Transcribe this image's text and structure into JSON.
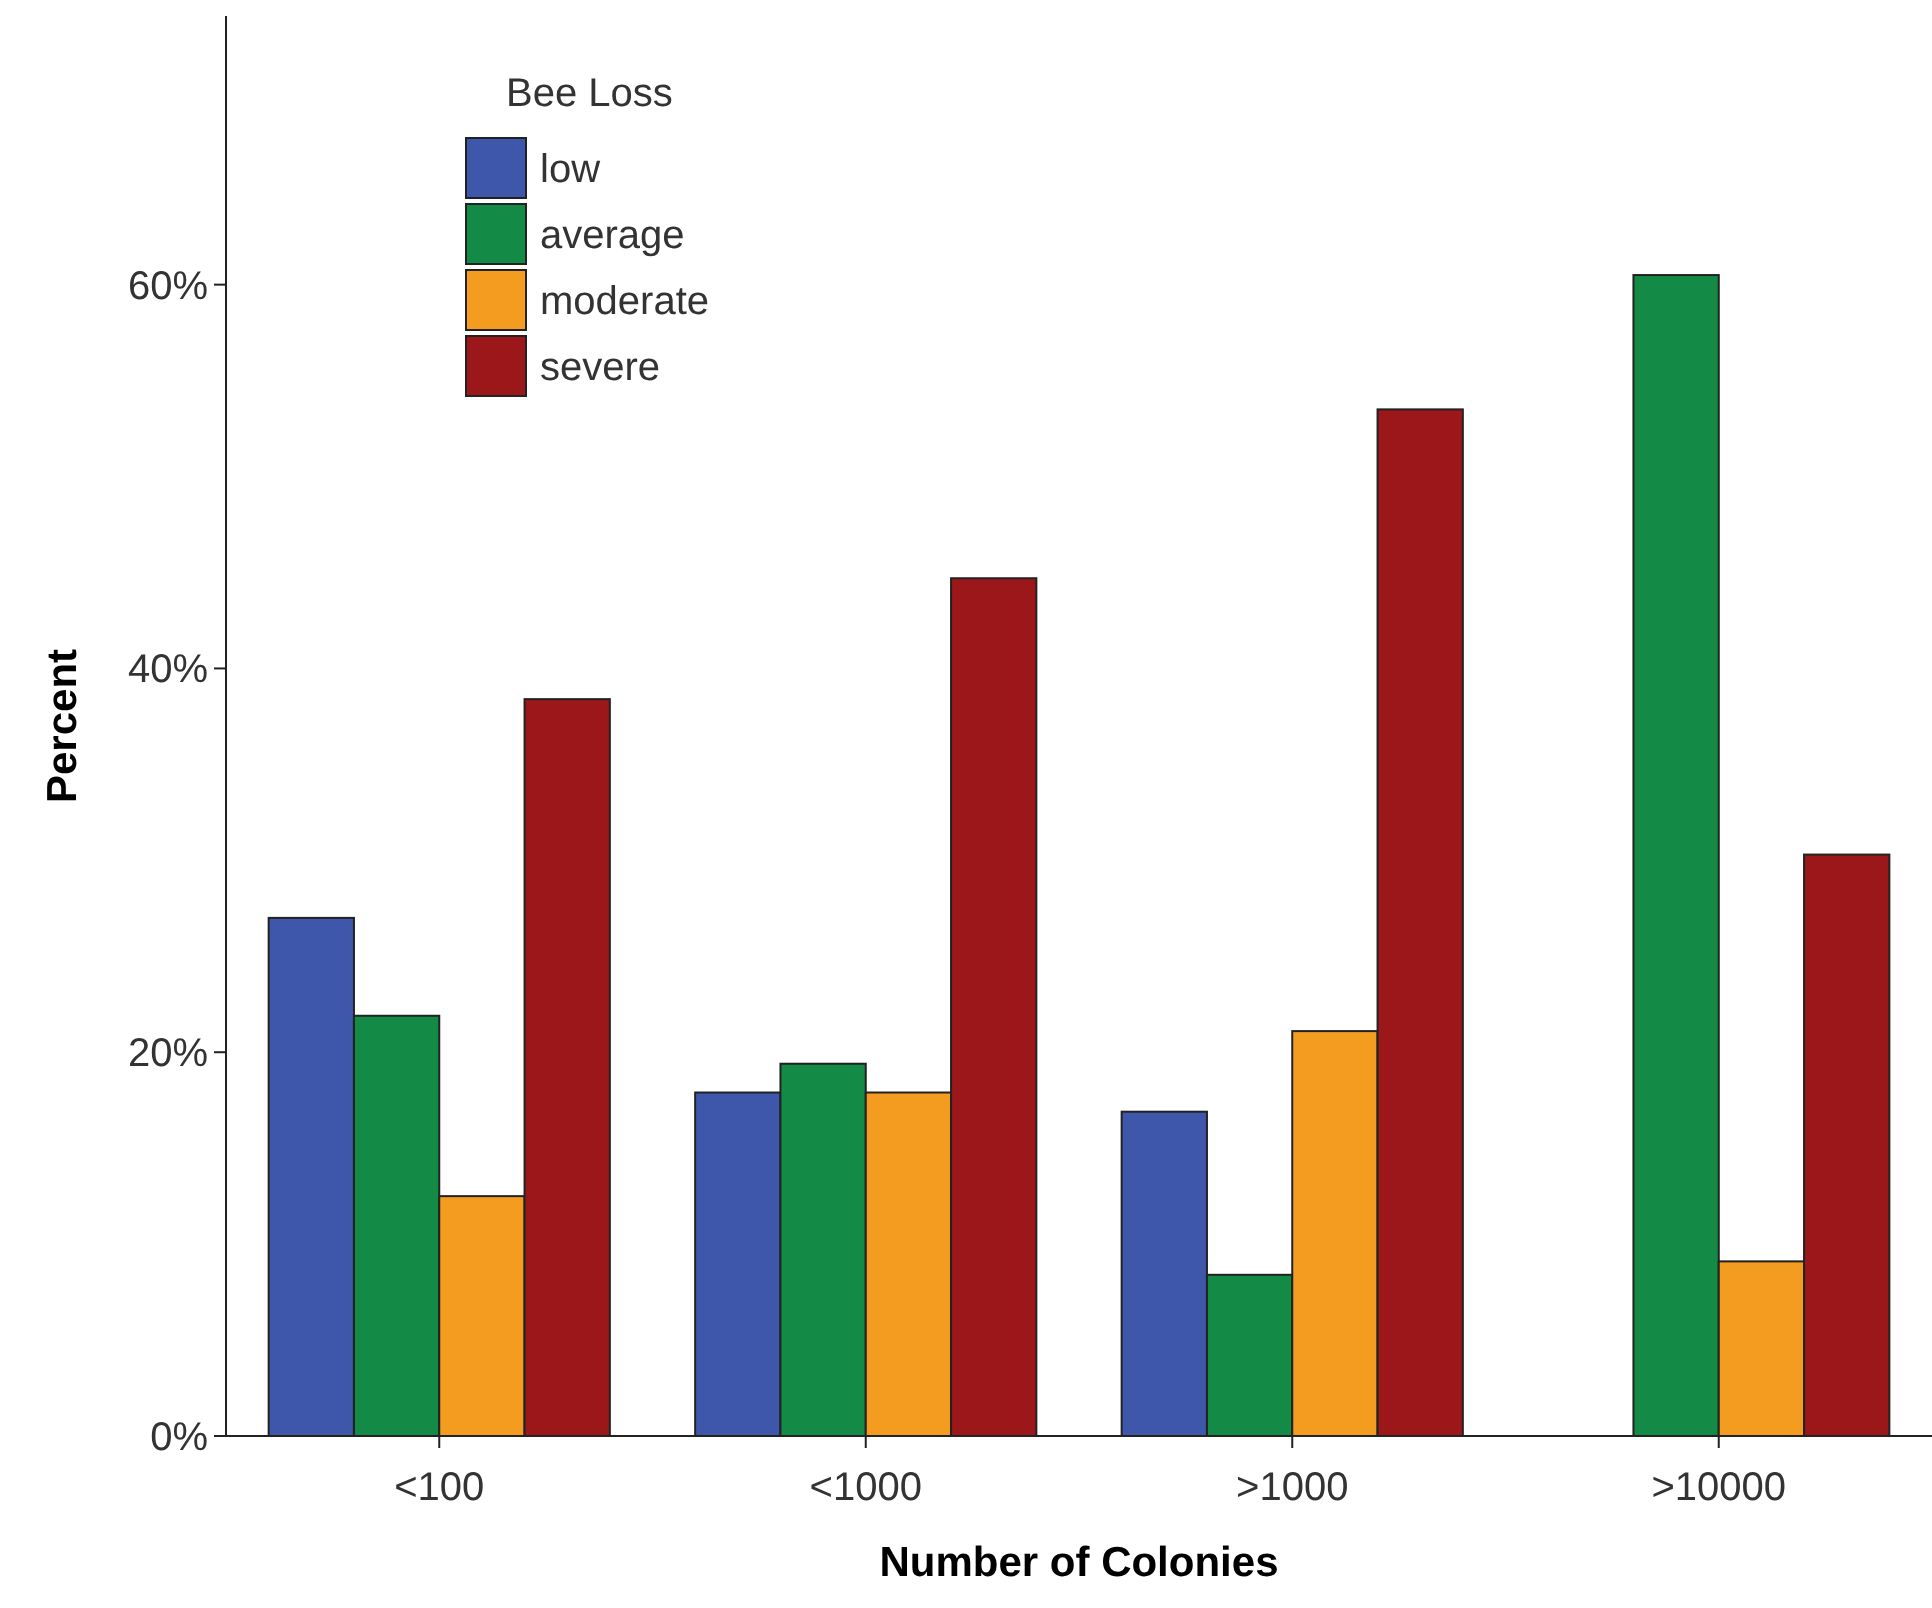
{
  "chart_data": {
    "type": "bar",
    "xlabel": "Number of Colonies",
    "ylabel": "Percent",
    "legend_title": "Bee Loss",
    "legend": "top left",
    "categories": [
      "<100",
      "<1000",
      ">1000",
      ">10000"
    ],
    "series": [
      {
        "name": "low",
        "color": "#3f57ab",
        "values": [
          27.0,
          17.9,
          16.9,
          0
        ]
      },
      {
        "name": "average",
        "color": "#138a45",
        "values": [
          21.9,
          19.4,
          8.4,
          60.5
        ]
      },
      {
        "name": "moderate",
        "color": "#f39c1f",
        "values": [
          12.5,
          17.9,
          21.1,
          9.1
        ]
      },
      {
        "name": "severe",
        "color": "#9b1719",
        "values": [
          38.4,
          44.7,
          53.5,
          30.3
        ]
      }
    ],
    "ylim": [
      0,
      74
    ],
    "yticks": [
      {
        "value": 0,
        "label": "0%"
      },
      {
        "value": 20,
        "label": "20%"
      },
      {
        "value": 40,
        "label": "40%"
      },
      {
        "value": 60,
        "label": "60%"
      }
    ]
  }
}
